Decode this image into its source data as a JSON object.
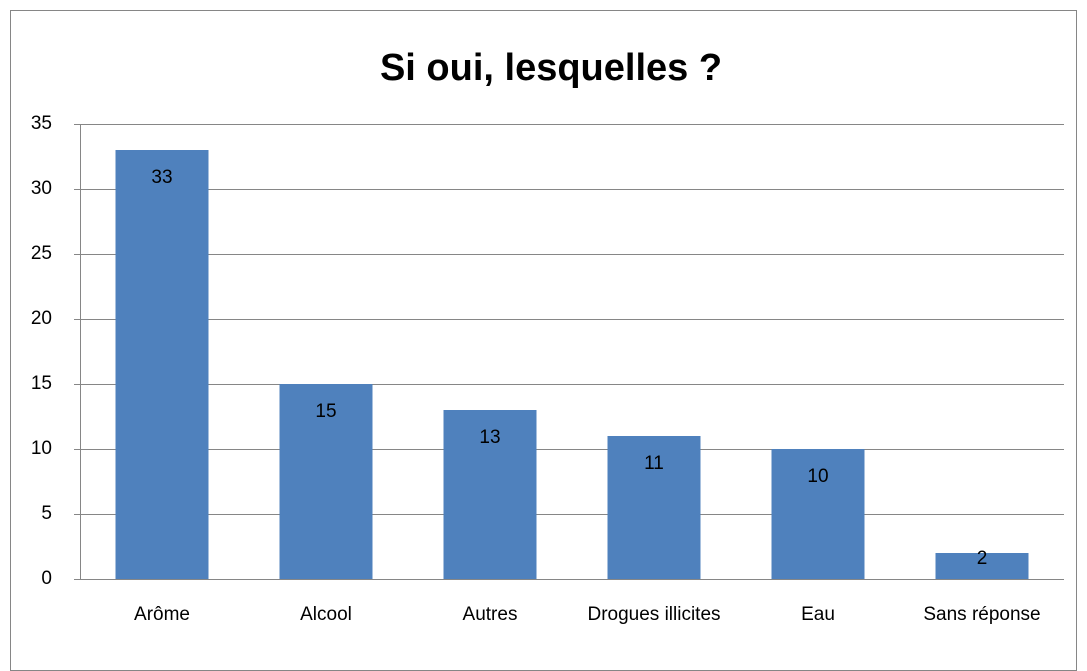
{
  "chart_data": {
    "type": "bar",
    "title": "Si oui, lesquelles ?",
    "categories": [
      "Arôme",
      "Alcool",
      "Autres",
      "Drogues illicites",
      "Eau",
      "Sans réponse"
    ],
    "values": [
      33,
      15,
      13,
      11,
      10,
      2
    ],
    "color": "#4f81bd",
    "ylim": [
      0,
      35
    ],
    "yticks": [
      0,
      5,
      10,
      15,
      20,
      25,
      30,
      35
    ],
    "grid": true
  }
}
